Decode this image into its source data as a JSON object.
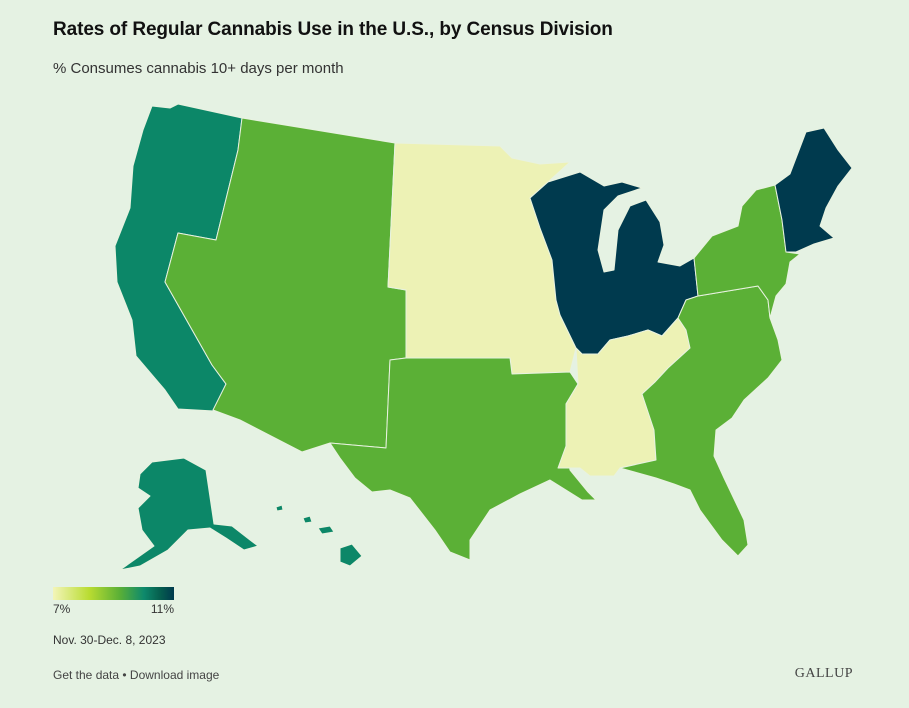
{
  "header": {
    "title": "Rates of Regular Cannabis Use in the U.S., by Census Division",
    "subtitle": "% Consumes cannabis 10+ days per month"
  },
  "legend": {
    "min_label": "7%",
    "max_label": "11%"
  },
  "date_range": "Nov. 30-Dec. 8, 2023",
  "footer": {
    "get_data": "Get the data",
    "separator": " • ",
    "download": "Download image",
    "brand": "GALLUP"
  },
  "colors": {
    "background": "#e5f2e3",
    "lowest": "#edf2b5",
    "mid": "#5bb036",
    "high": "#0c8768",
    "highest": "#003a4e",
    "border": "#e8f2e0"
  },
  "map_data": {
    "divisions": [
      {
        "name": "Pacific",
        "level": "high"
      },
      {
        "name": "Mountain",
        "level": "mid"
      },
      {
        "name": "West North Central",
        "level": "lowest"
      },
      {
        "name": "East North Central",
        "level": "highest"
      },
      {
        "name": "West South Central",
        "level": "mid"
      },
      {
        "name": "East South Central",
        "level": "lowest"
      },
      {
        "name": "South Atlantic",
        "level": "mid"
      },
      {
        "name": "Middle Atlantic",
        "level": "mid"
      },
      {
        "name": "New England",
        "level": "highest"
      }
    ]
  }
}
